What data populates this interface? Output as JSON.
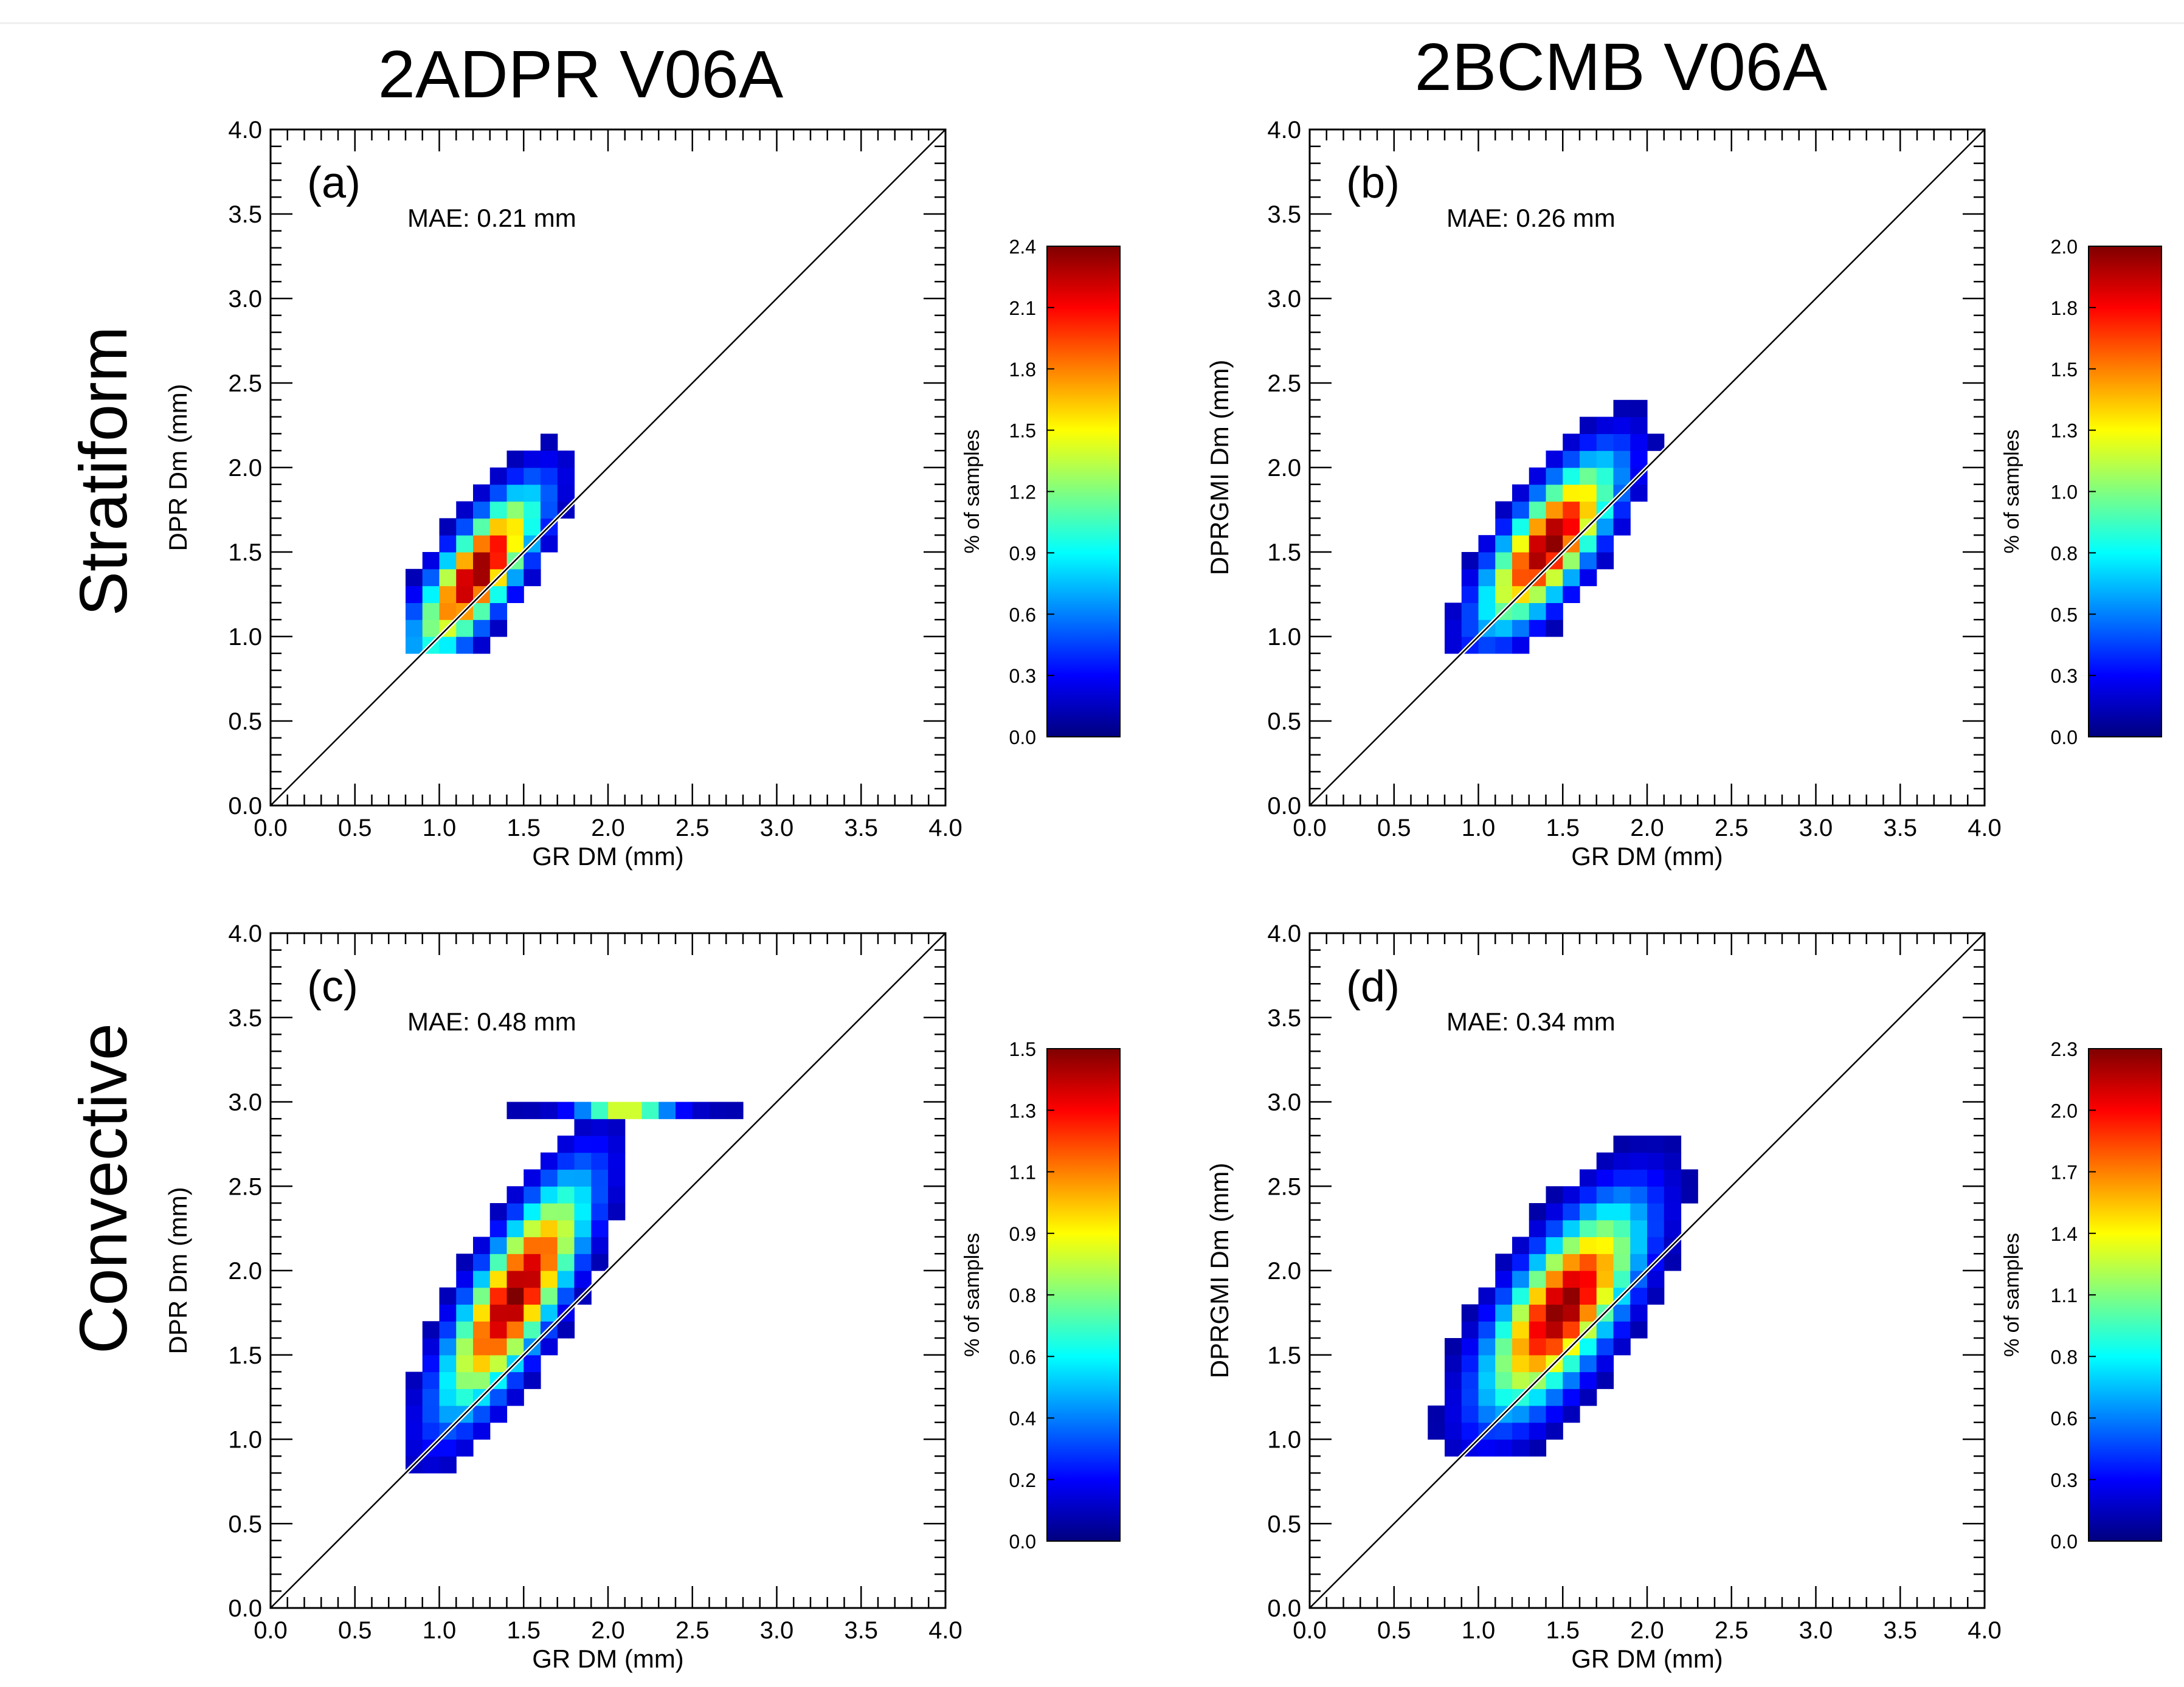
{
  "figure": {
    "column_titles": [
      "2ADPR V06A",
      "2BCMB V06A"
    ],
    "row_titles": [
      "Stratiform",
      "Convective"
    ],
    "colors": {
      "colormap": [
        "#00007f",
        "#0000ff",
        "#0080ff",
        "#00ffff",
        "#80ff80",
        "#ffff00",
        "#ff8000",
        "#ff0000",
        "#7f0000"
      ],
      "diagonal": "#000000",
      "frame": "#000000"
    }
  },
  "chart_data": [
    {
      "id": "a",
      "type": "heatmap",
      "panel_label": "(a)",
      "annotation": "MAE: 0.21 mm",
      "xlabel": "GR DM (mm)",
      "ylabel": "DPR Dm (mm)",
      "xlim": [
        0,
        4
      ],
      "ylim": [
        0,
        4
      ],
      "xticks": [
        "0.0",
        "0.5",
        "1.0",
        "1.5",
        "2.0",
        "2.5",
        "3.0",
        "3.5",
        "4.0"
      ],
      "yticks": [
        "0.0",
        "0.5",
        "1.0",
        "1.5",
        "2.0",
        "2.5",
        "3.0",
        "3.5",
        "4.0"
      ],
      "bin_size": 0.1,
      "cluster": {
        "cx": 1.23,
        "cy": 1.38,
        "sx": 0.24,
        "sy": 0.32,
        "rho": 0.78,
        "cutoff": 0.05,
        "xmin": 0.8,
        "xmax": 2.2,
        "ymin": 0.9,
        "ymax": 2.5
      },
      "colorbar": {
        "label": "% of samples",
        "min": 0.0,
        "max": 2.4,
        "ticks": [
          "0.0",
          "0.3",
          "0.6",
          "0.9",
          "1.2",
          "1.5",
          "1.8",
          "2.1",
          "2.4"
        ]
      }
    },
    {
      "id": "b",
      "type": "heatmap",
      "panel_label": "(b)",
      "annotation": "MAE: 0.26 mm",
      "xlabel": "GR DM (mm)",
      "ylabel": "DPRGMI Dm (mm)",
      "xlim": [
        0,
        4
      ],
      "ylim": [
        0,
        4
      ],
      "xticks": [
        "0.0",
        "0.5",
        "1.0",
        "1.5",
        "2.0",
        "2.5",
        "3.0",
        "3.5",
        "4.0"
      ],
      "yticks": [
        "0.0",
        "0.5",
        "1.0",
        "1.5",
        "2.0",
        "2.5",
        "3.0",
        "3.5",
        "4.0"
      ],
      "bin_size": 0.1,
      "cluster": {
        "cx": 1.42,
        "cy": 1.55,
        "sx": 0.26,
        "sy": 0.33,
        "rho": 0.75,
        "cutoff": 0.05,
        "xmin": 0.8,
        "xmax": 2.3,
        "ymin": 0.9,
        "ymax": 2.5
      },
      "colorbar": {
        "label": "% of samples",
        "min": 0.0,
        "max": 2.0,
        "ticks": [
          "0.0",
          "0.3",
          "0.5",
          "0.8",
          "1.0",
          "1.3",
          "1.5",
          "1.8",
          "2.0"
        ]
      }
    },
    {
      "id": "c",
      "type": "heatmap",
      "panel_label": "(c)",
      "annotation": "MAE: 0.48 mm",
      "xlabel": "GR DM (mm)",
      "ylabel": "DPR Dm (mm)",
      "xlim": [
        0,
        4
      ],
      "ylim": [
        0,
        4
      ],
      "xticks": [
        "0.0",
        "0.5",
        "1.0",
        "1.5",
        "2.0",
        "2.5",
        "3.0",
        "3.5",
        "4.0"
      ],
      "yticks": [
        "0.0",
        "0.5",
        "1.0",
        "1.5",
        "2.0",
        "2.5",
        "3.0",
        "3.5",
        "4.0"
      ],
      "bin_size": 0.1,
      "cluster": {
        "cx": 1.45,
        "cy": 1.85,
        "sx": 0.28,
        "sy": 0.45,
        "rho": 0.8,
        "cutoff": 0.05,
        "xmin": 0.7,
        "xmax": 2.4,
        "ymin": 0.7,
        "ymax": 2.95
      },
      "extra_band": {
        "y": 3.0,
        "xmin": 1.4,
        "xmax": 2.8,
        "peak_x": 2.1
      },
      "colorbar": {
        "label": "% of samples",
        "min": 0.0,
        "max": 1.5,
        "ticks": [
          "0.0",
          "0.2",
          "0.4",
          "0.6",
          "0.8",
          "0.9",
          "1.1",
          "1.3",
          "1.5"
        ]
      }
    },
    {
      "id": "d",
      "type": "heatmap",
      "panel_label": "(d)",
      "annotation": "MAE: 0.34 mm",
      "xlabel": "GR DM (mm)",
      "ylabel": "DPRGMI Dm (mm)",
      "xlim": [
        0,
        4
      ],
      "ylim": [
        0,
        4
      ],
      "xticks": [
        "0.0",
        "0.5",
        "1.0",
        "1.5",
        "2.0",
        "2.5",
        "3.0",
        "3.5",
        "4.0"
      ],
      "yticks": [
        "0.0",
        "0.5",
        "1.0",
        "1.5",
        "2.0",
        "2.5",
        "3.0",
        "3.5",
        "4.0"
      ],
      "bin_size": 0.1,
      "cluster": {
        "cx": 1.5,
        "cy": 1.78,
        "sx": 0.3,
        "sy": 0.4,
        "rho": 0.7,
        "cutoff": 0.04,
        "xmin": 0.7,
        "xmax": 2.5,
        "ymin": 0.9,
        "ymax": 3.0
      },
      "colorbar": {
        "label": "% of samples",
        "min": 0.0,
        "max": 2.3,
        "ticks": [
          "0.0",
          "0.3",
          "0.6",
          "0.8",
          "1.1",
          "1.4",
          "1.7",
          "2.0",
          "2.3"
        ]
      }
    }
  ]
}
